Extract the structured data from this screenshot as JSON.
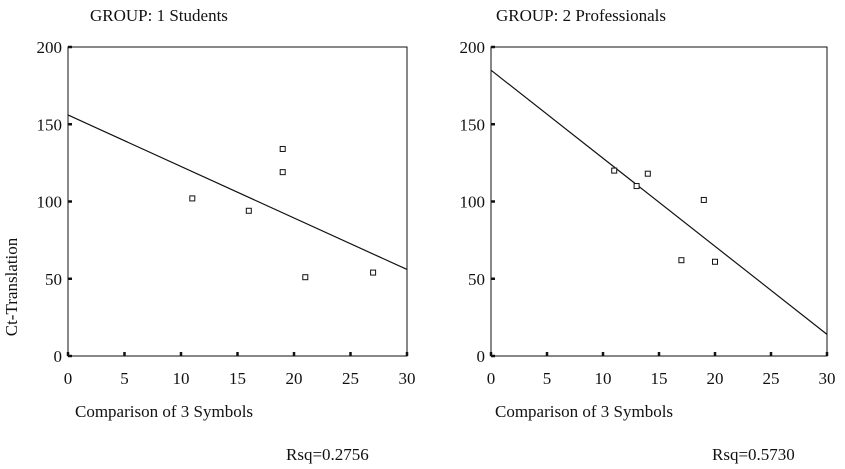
{
  "shared": {
    "ylabel": "Ct-Translation"
  },
  "chart_data": [
    {
      "type": "scatter",
      "title": "GROUP: 1 Students",
      "xlabel": "Comparison of 3 Symbols",
      "ylabel": "Ct-Translation",
      "xlim": [
        0,
        30
      ],
      "ylim": [
        0,
        200
      ],
      "x_ticks": [
        0,
        5,
        10,
        15,
        20,
        25,
        30
      ],
      "y_ticks": [
        0,
        50,
        100,
        150,
        200
      ],
      "grid": false,
      "points": [
        {
          "x": 11,
          "y": 102
        },
        {
          "x": 16,
          "y": 94
        },
        {
          "x": 19,
          "y": 134
        },
        {
          "x": 19,
          "y": 119
        },
        {
          "x": 21,
          "y": 51
        },
        {
          "x": 27,
          "y": 54
        }
      ],
      "fit_line": {
        "x": [
          0,
          30
        ],
        "y": [
          156,
          56
        ]
      },
      "rsq": "Rsq=0.2756"
    },
    {
      "type": "scatter",
      "title": "GROUP: 2 Professionals",
      "xlabel": "Comparison of 3 Symbols",
      "ylabel": "",
      "xlim": [
        0,
        30
      ],
      "ylim": [
        0,
        200
      ],
      "x_ticks": [
        0,
        5,
        10,
        15,
        20,
        25,
        30
      ],
      "y_ticks": [
        0,
        50,
        100,
        150,
        200
      ],
      "grid": false,
      "points": [
        {
          "x": 11,
          "y": 120
        },
        {
          "x": 13,
          "y": 110
        },
        {
          "x": 14,
          "y": 118
        },
        {
          "x": 17,
          "y": 62
        },
        {
          "x": 19,
          "y": 101
        },
        {
          "x": 20,
          "y": 61
        }
      ],
      "fit_line": {
        "x": [
          0,
          30
        ],
        "y": [
          185,
          14
        ]
      },
      "rsq": "Rsq=0.5730"
    }
  ]
}
